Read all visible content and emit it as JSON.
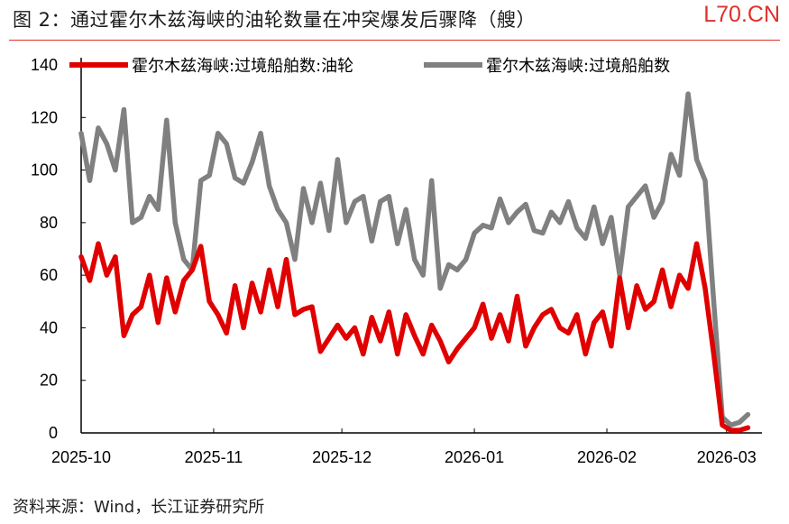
{
  "title": "图 2：通过霍尔木兹海峡的油轮数量在冲突爆发后骤降（艘）",
  "watermark": "L70.CN",
  "source": "资料来源：Wind，长江证券研究所",
  "chart_data": {
    "type": "line",
    "title": "图 2：通过霍尔木兹海峡的油轮数量在冲突爆发后骤降（艘）",
    "xlabel": "",
    "ylabel": "艘",
    "ylim": [
      0,
      140
    ],
    "yticks": [
      0,
      20,
      40,
      60,
      80,
      100,
      120,
      140
    ],
    "xtick_labels": [
      "2025-10",
      "2025-11",
      "2025-12",
      "2026-01",
      "2026-02",
      "2026-03"
    ],
    "xtick_days": [
      0,
      31,
      61,
      92,
      123,
      151
    ],
    "x_days_step": 2,
    "legend_position": "top",
    "series": [
      {
        "name": "霍尔木兹海峡:过境船舶数:油轮",
        "color": "#e00000",
        "values": [
          67,
          58,
          72,
          60,
          67,
          37,
          45,
          48,
          60,
          42,
          59,
          46,
          58,
          62,
          71,
          50,
          45,
          38,
          56,
          40,
          57,
          46,
          62,
          48,
          66,
          45,
          47,
          48,
          31,
          36,
          41,
          36,
          40,
          30,
          44,
          35,
          46,
          30,
          45,
          37,
          30,
          41,
          35,
          27,
          32,
          36,
          40,
          49,
          36,
          45,
          35,
          52,
          33,
          40,
          45,
          47,
          40,
          38,
          45,
          30,
          42,
          46,
          33,
          59,
          40,
          56,
          47,
          50,
          62,
          48,
          60,
          55,
          72,
          55,
          30,
          3,
          1,
          1,
          2
        ]
      },
      {
        "name": "霍尔木兹海峡:过境船舶数",
        "color": "#808080",
        "values": [
          114,
          96,
          116,
          110,
          100,
          123,
          80,
          82,
          90,
          85,
          119,
          80,
          66,
          62,
          96,
          98,
          114,
          110,
          97,
          95,
          103,
          114,
          94,
          85,
          80,
          66,
          93,
          80,
          95,
          77,
          104,
          80,
          88,
          90,
          73,
          88,
          90,
          72,
          85,
          66,
          60,
          96,
          55,
          64,
          62,
          66,
          76,
          79,
          78,
          89,
          80,
          84,
          87,
          77,
          76,
          84,
          80,
          88,
          78,
          74,
          86,
          72,
          82,
          60,
          86,
          90,
          94,
          82,
          88,
          106,
          98,
          129,
          104,
          96,
          50,
          6,
          3,
          4,
          7
        ]
      }
    ]
  }
}
